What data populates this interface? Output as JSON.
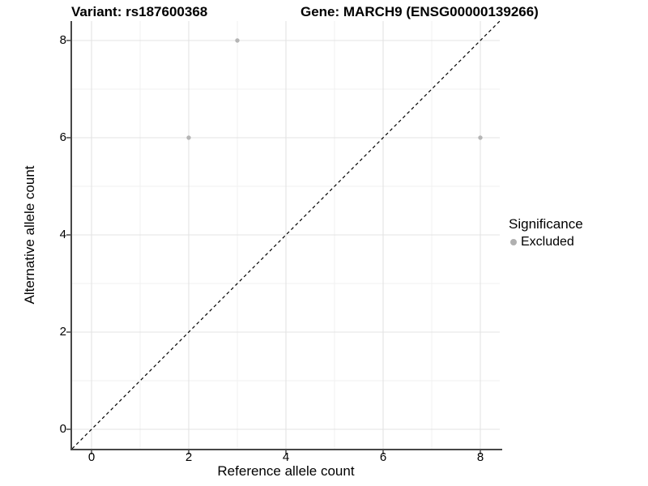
{
  "chart_data": {
    "type": "scatter",
    "title_left": "Variant: rs187600368",
    "title_right": "Gene: MARCH9 (ENSG00000139266)",
    "xlabel": "Reference allele count",
    "ylabel": "Alternative allele count",
    "xlim": [
      -0.4,
      8.4
    ],
    "ylim": [
      -0.4,
      8.4
    ],
    "xticks": [
      0,
      2,
      4,
      6,
      8
    ],
    "yticks": [
      0,
      2,
      4,
      6,
      8
    ],
    "xticks_minor": [
      1,
      3,
      5,
      7
    ],
    "yticks_minor": [
      1,
      3,
      5,
      7
    ],
    "grid": "major and minor, light gray, on white panel",
    "reference_line": {
      "type": "identity y=x",
      "style": "dashed",
      "color": "#000000"
    },
    "series": [
      {
        "name": "Excluded",
        "marker": "circle",
        "color": "#b5b5b5",
        "points": [
          [
            3,
            8
          ],
          [
            2,
            6
          ],
          [
            8,
            6
          ]
        ]
      }
    ],
    "legend": {
      "title": "Significance",
      "position": "right",
      "items": [
        {
          "label": "Excluded",
          "color": "#b0b0b0"
        }
      ]
    }
  },
  "colors": {
    "background": "#ffffff",
    "grid_major": "#e3e3e3",
    "grid_minor": "#f0f0f0",
    "axis": "#474747",
    "text": "#000000"
  }
}
